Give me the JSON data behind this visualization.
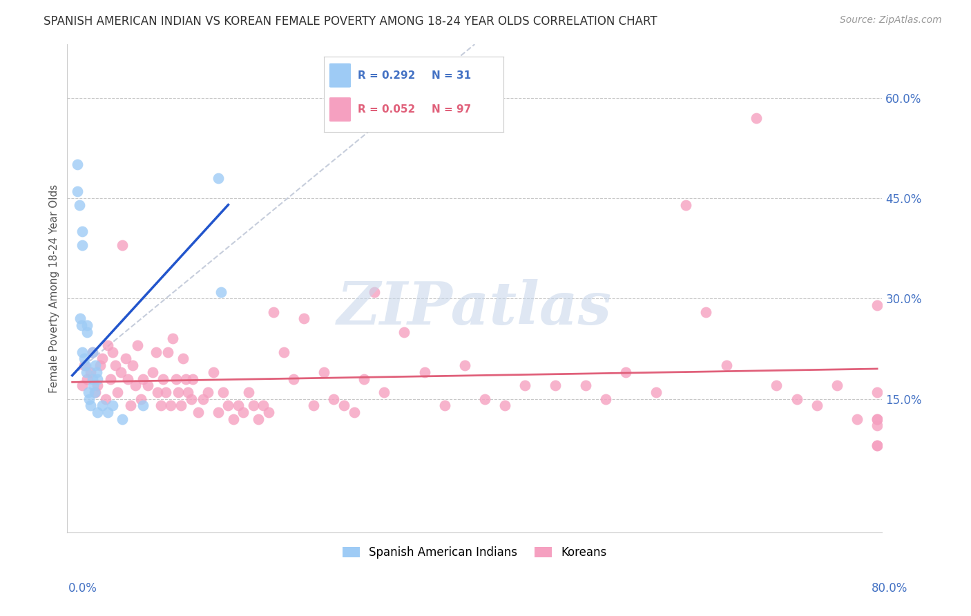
{
  "title": "SPANISH AMERICAN INDIAN VS KOREAN FEMALE POVERTY AMONG 18-24 YEAR OLDS CORRELATION CHART",
  "source": "Source: ZipAtlas.com",
  "ylabel": "Female Poverty Among 18-24 Year Olds",
  "right_yticks": [
    "60.0%",
    "45.0%",
    "30.0%",
    "15.0%"
  ],
  "right_ytick_vals": [
    0.6,
    0.45,
    0.3,
    0.15
  ],
  "xlim": [
    0.0,
    0.8
  ],
  "ylim": [
    -0.05,
    0.68
  ],
  "group1_label": "Spanish American Indians",
  "group1_color": "#9ecbf5",
  "group1_R": "0.292",
  "group1_N": "31",
  "group2_label": "Koreans",
  "group2_color": "#f5a0c0",
  "group2_R": "0.052",
  "group2_N": "97",
  "blue_line_color": "#2255cc",
  "pink_line_color": "#e0607a",
  "dash_line_color": "#c0c8d8",
  "watermark": "ZIPatlas",
  "group1_x": [
    0.005,
    0.005,
    0.007,
    0.008,
    0.009,
    0.01,
    0.01,
    0.01,
    0.012,
    0.013,
    0.014,
    0.015,
    0.015,
    0.016,
    0.017,
    0.018,
    0.02,
    0.02,
    0.021,
    0.022,
    0.023,
    0.024,
    0.025,
    0.025,
    0.03,
    0.035,
    0.04,
    0.05,
    0.07,
    0.145,
    0.148
  ],
  "group1_y": [
    0.5,
    0.46,
    0.44,
    0.27,
    0.26,
    0.4,
    0.38,
    0.22,
    0.21,
    0.2,
    0.19,
    0.26,
    0.25,
    0.16,
    0.15,
    0.14,
    0.22,
    0.18,
    0.17,
    0.16,
    0.2,
    0.19,
    0.18,
    0.13,
    0.14,
    0.13,
    0.14,
    0.12,
    0.14,
    0.48,
    0.31
  ],
  "group2_x": [
    0.01,
    0.012,
    0.015,
    0.018,
    0.02,
    0.023,
    0.025,
    0.028,
    0.03,
    0.033,
    0.035,
    0.038,
    0.04,
    0.043,
    0.045,
    0.048,
    0.05,
    0.053,
    0.055,
    0.058,
    0.06,
    0.063,
    0.065,
    0.068,
    0.07,
    0.075,
    0.08,
    0.083,
    0.085,
    0.088,
    0.09,
    0.093,
    0.095,
    0.098,
    0.1,
    0.103,
    0.105,
    0.108,
    0.11,
    0.113,
    0.115,
    0.118,
    0.12,
    0.125,
    0.13,
    0.135,
    0.14,
    0.145,
    0.15,
    0.155,
    0.16,
    0.165,
    0.17,
    0.175,
    0.18,
    0.185,
    0.19,
    0.195,
    0.2,
    0.21,
    0.22,
    0.23,
    0.24,
    0.25,
    0.26,
    0.27,
    0.28,
    0.29,
    0.3,
    0.31,
    0.33,
    0.35,
    0.37,
    0.39,
    0.41,
    0.43,
    0.45,
    0.48,
    0.51,
    0.53,
    0.55,
    0.58,
    0.61,
    0.63,
    0.65,
    0.68,
    0.7,
    0.72,
    0.74,
    0.76,
    0.78,
    0.8,
    0.8,
    0.8,
    0.8,
    0.8,
    0.8,
    0.8
  ],
  "group2_y": [
    0.17,
    0.2,
    0.18,
    0.19,
    0.22,
    0.16,
    0.17,
    0.2,
    0.21,
    0.15,
    0.23,
    0.18,
    0.22,
    0.2,
    0.16,
    0.19,
    0.38,
    0.21,
    0.18,
    0.14,
    0.2,
    0.17,
    0.23,
    0.15,
    0.18,
    0.17,
    0.19,
    0.22,
    0.16,
    0.14,
    0.18,
    0.16,
    0.22,
    0.14,
    0.24,
    0.18,
    0.16,
    0.14,
    0.21,
    0.18,
    0.16,
    0.15,
    0.18,
    0.13,
    0.15,
    0.16,
    0.19,
    0.13,
    0.16,
    0.14,
    0.12,
    0.14,
    0.13,
    0.16,
    0.14,
    0.12,
    0.14,
    0.13,
    0.28,
    0.22,
    0.18,
    0.27,
    0.14,
    0.19,
    0.15,
    0.14,
    0.13,
    0.18,
    0.31,
    0.16,
    0.25,
    0.19,
    0.14,
    0.2,
    0.15,
    0.14,
    0.17,
    0.17,
    0.17,
    0.15,
    0.19,
    0.16,
    0.44,
    0.28,
    0.2,
    0.57,
    0.17,
    0.15,
    0.14,
    0.17,
    0.12,
    0.29,
    0.08,
    0.12,
    0.11,
    0.08,
    0.16,
    0.12
  ],
  "blue_line_x": [
    0.0,
    0.155
  ],
  "blue_line_y": [
    0.185,
    0.44
  ],
  "dash_line_x": [
    0.0,
    0.4
  ],
  "dash_line_y": [
    0.185,
    0.68
  ],
  "pink_line_x": [
    0.0,
    0.8
  ],
  "pink_line_y": [
    0.175,
    0.195
  ]
}
